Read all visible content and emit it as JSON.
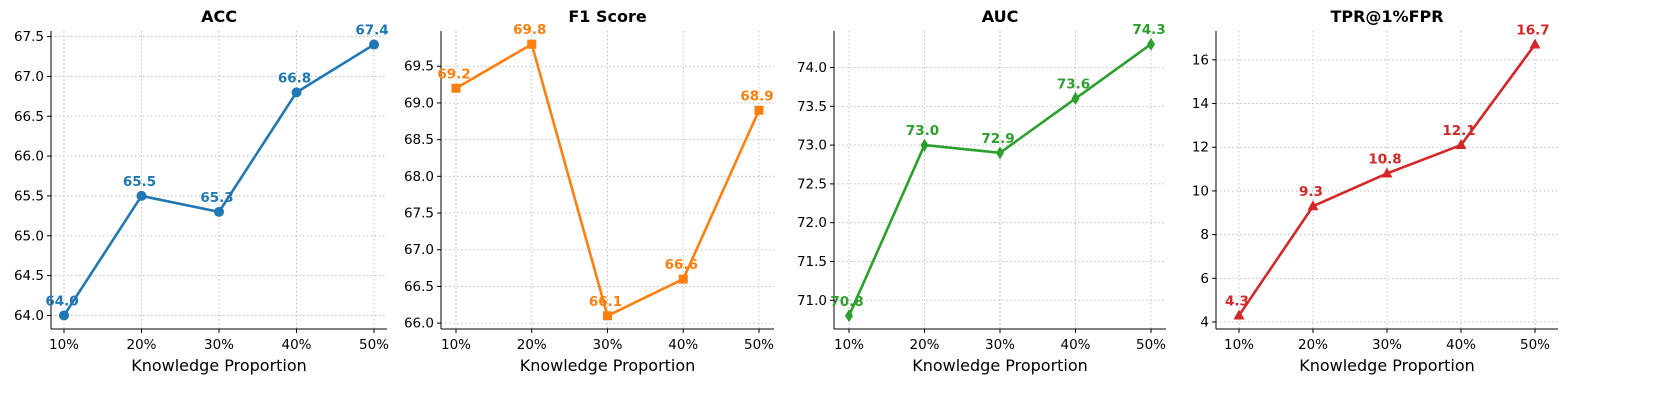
{
  "chart_data": [
    {
      "type": "line",
      "title": "ACC",
      "xlabel": "Knowledge Proportion",
      "ylabel": "",
      "categories": [
        "10%",
        "20%",
        "30%",
        "40%",
        "50%"
      ],
      "values": [
        64.0,
        65.5,
        65.3,
        66.8,
        67.4
      ],
      "labels": [
        "64.0",
        "65.5",
        "65.3",
        "66.8",
        "67.4"
      ],
      "ylim": [
        63.83,
        67.57
      ],
      "yticks": [
        64.0,
        64.5,
        65.0,
        65.5,
        66.0,
        66.5,
        67.0,
        67.5
      ],
      "ytick_labels": [
        "64.0",
        "64.5",
        "65.0",
        "65.5",
        "66.0",
        "66.5",
        "67.0",
        "67.5"
      ],
      "color": "#1f77b4",
      "marker": "circle",
      "grid": true
    },
    {
      "type": "line",
      "title": "F1 Score",
      "xlabel": "Knowledge Proportion",
      "ylabel": "",
      "categories": [
        "10%",
        "20%",
        "30%",
        "40%",
        "50%"
      ],
      "values": [
        69.2,
        69.8,
        66.1,
        66.6,
        68.9
      ],
      "labels": [
        "69.2",
        "69.8",
        "66.1",
        "66.6",
        "68.9"
      ],
      "ylim": [
        65.92,
        69.98
      ],
      "yticks": [
        66.0,
        66.5,
        67.0,
        67.5,
        68.0,
        68.5,
        69.0,
        69.5
      ],
      "ytick_labels": [
        "66.0",
        "66.5",
        "67.0",
        "67.5",
        "68.0",
        "68.5",
        "69.0",
        "69.5"
      ],
      "color": "#ff7f0e",
      "marker": "square",
      "grid": true
    },
    {
      "type": "line",
      "title": "AUC",
      "xlabel": "Knowledge Proportion",
      "ylabel": "",
      "categories": [
        "10%",
        "20%",
        "30%",
        "40%",
        "50%"
      ],
      "values": [
        70.8,
        73.0,
        72.9,
        73.6,
        74.3
      ],
      "labels": [
        "70.8",
        "73.0",
        "72.9",
        "73.6",
        "74.3"
      ],
      "ylim": [
        70.63,
        74.47
      ],
      "yticks": [
        71.0,
        71.5,
        72.0,
        72.5,
        73.0,
        73.5,
        74.0
      ],
      "ytick_labels": [
        "71.0",
        "71.5",
        "72.0",
        "72.5",
        "73.0",
        "73.5",
        "74.0"
      ],
      "color": "#2ca02c",
      "marker": "diamond",
      "grid": true
    },
    {
      "type": "line",
      "title": "TPR@1%FPR",
      "xlabel": "Knowledge Proportion",
      "ylabel": "",
      "categories": [
        "10%",
        "20%",
        "30%",
        "40%",
        "50%"
      ],
      "values": [
        4.3,
        9.3,
        10.8,
        12.1,
        16.7
      ],
      "labels": [
        "4.3",
        "9.3",
        "10.8",
        "12.1",
        "16.7"
      ],
      "ylim": [
        3.68,
        17.32
      ],
      "yticks": [
        4,
        6,
        8,
        10,
        12,
        14,
        16
      ],
      "ytick_labels": [
        "4",
        "6",
        "8",
        "10",
        "12",
        "14",
        "16"
      ],
      "color": "#d62728",
      "marker": "triangle",
      "grid": true
    }
  ]
}
